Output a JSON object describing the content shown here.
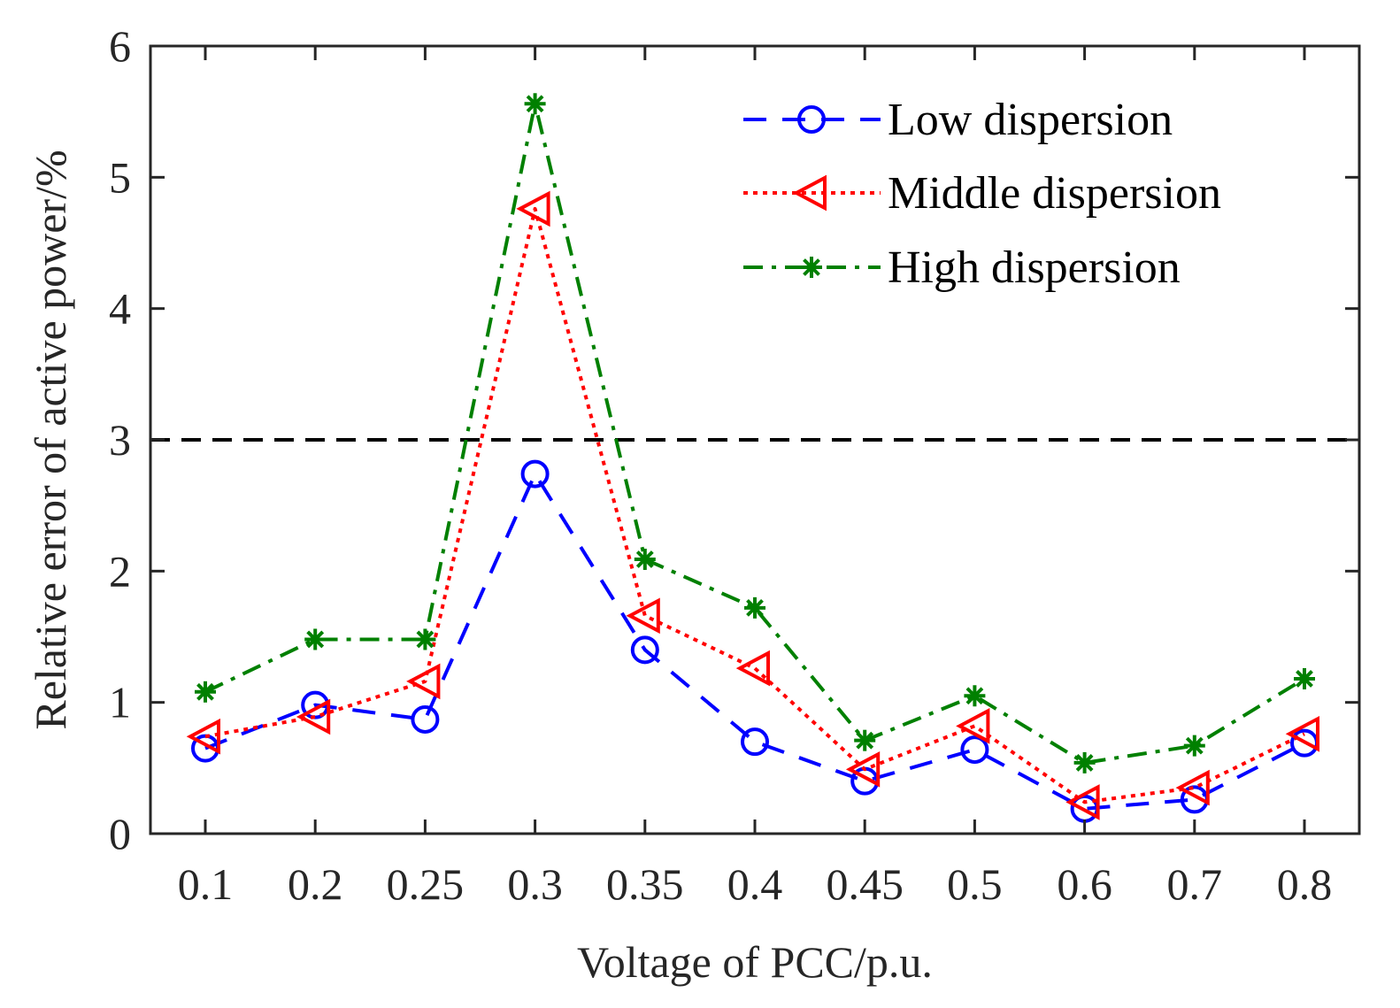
{
  "chart_data": {
    "type": "line",
    "title": "",
    "xlabel": "Voltage of PCC/p.u.",
    "ylabel": "Relative error of active power/%",
    "categories": [
      "0.1",
      "0.2",
      "0.25",
      "0.3",
      "0.35",
      "0.4",
      "0.45",
      "0.5",
      "0.6",
      "0.7",
      "0.8"
    ],
    "ylim": [
      0,
      6
    ],
    "yticks": [
      "0",
      "1",
      "2",
      "3",
      "4",
      "5",
      "6"
    ],
    "grid": false,
    "legend_position": "top-right",
    "reference_line": {
      "y": 3,
      "style": "dashed",
      "color": "#000000"
    },
    "series": [
      {
        "name": "Low dispersion",
        "color": "#0000ff",
        "line_style": "dashed",
        "marker": "circle",
        "values": [
          0.65,
          0.98,
          0.87,
          2.74,
          1.4,
          0.7,
          0.4,
          0.64,
          0.19,
          0.26,
          0.69
        ]
      },
      {
        "name": "Middle dispersion",
        "color": "#ff0000",
        "line_style": "dotted",
        "marker": "triangle-left",
        "values": [
          0.74,
          0.89,
          1.16,
          4.76,
          1.66,
          1.26,
          0.49,
          0.82,
          0.24,
          0.35,
          0.76
        ]
      },
      {
        "name": "High dispersion",
        "color": "#008000",
        "line_style": "dash-dot",
        "marker": "asterisk",
        "values": [
          1.08,
          1.48,
          1.48,
          5.56,
          2.09,
          1.72,
          0.71,
          1.05,
          0.54,
          0.67,
          1.18
        ]
      }
    ]
  }
}
